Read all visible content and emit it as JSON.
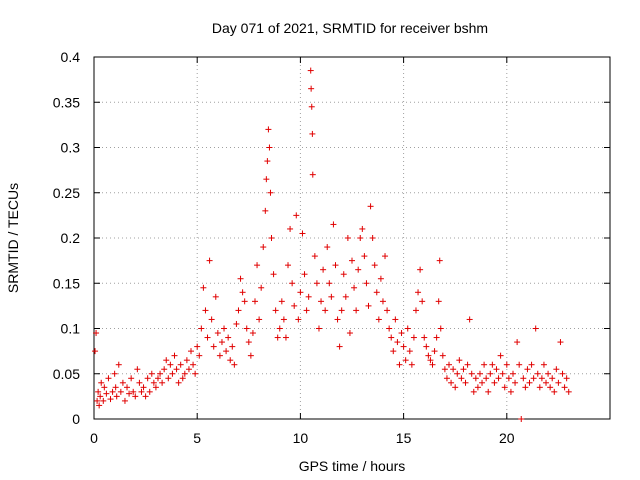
{
  "chart_data": {
    "type": "scatter",
    "title": "Day 071 of 2021, SRMTID for receiver bshm",
    "xlabel": "GPS time / hours",
    "ylabel": "SRMTID / TECUs",
    "xlim": [
      0,
      25
    ],
    "ylim": [
      0,
      0.4
    ],
    "x_ticks": [
      0,
      5,
      10,
      15,
      20
    ],
    "y_ticks": [
      0,
      0.05,
      0.1,
      0.15,
      0.2,
      0.25,
      0.3,
      0.35,
      0.4
    ],
    "x_tick_labels": [
      "0",
      "5",
      "10",
      "15",
      "20"
    ],
    "y_tick_labels": [
      "0",
      "0.05",
      "0.1",
      "0.15",
      "0.2",
      "0.25",
      "0.3",
      "0.35",
      "0.4"
    ],
    "grid": true,
    "marker": "+",
    "color": "#e00000",
    "series": [
      {
        "name": "SRMTID",
        "points": [
          [
            0.05,
            0.075
          ],
          [
            0.1,
            0.095
          ],
          [
            0.15,
            0.02
          ],
          [
            0.2,
            0.03
          ],
          [
            0.25,
            0.015
          ],
          [
            0.3,
            0.025
          ],
          [
            0.35,
            0.04
          ],
          [
            0.45,
            0.02
          ],
          [
            0.5,
            0.035
          ],
          [
            0.6,
            0.028
          ],
          [
            0.7,
            0.045
          ],
          [
            0.8,
            0.022
          ],
          [
            0.9,
            0.03
          ],
          [
            1.0,
            0.05
          ],
          [
            1.05,
            0.035
          ],
          [
            1.1,
            0.025
          ],
          [
            1.2,
            0.06
          ],
          [
            1.3,
            0.03
          ],
          [
            1.4,
            0.04
          ],
          [
            1.5,
            0.02
          ],
          [
            1.6,
            0.035
          ],
          [
            1.7,
            0.028
          ],
          [
            1.8,
            0.045
          ],
          [
            1.9,
            0.03
          ],
          [
            2.0,
            0.025
          ],
          [
            2.1,
            0.055
          ],
          [
            2.2,
            0.04
          ],
          [
            2.3,
            0.03
          ],
          [
            2.4,
            0.035
          ],
          [
            2.5,
            0.025
          ],
          [
            2.6,
            0.045
          ],
          [
            2.7,
            0.03
          ],
          [
            2.8,
            0.05
          ],
          [
            2.9,
            0.04
          ],
          [
            3.0,
            0.035
          ],
          [
            3.1,
            0.045
          ],
          [
            3.2,
            0.05
          ],
          [
            3.3,
            0.04
          ],
          [
            3.4,
            0.055
          ],
          [
            3.5,
            0.065
          ],
          [
            3.6,
            0.045
          ],
          [
            3.7,
            0.06
          ],
          [
            3.8,
            0.05
          ],
          [
            3.9,
            0.07
          ],
          [
            4.0,
            0.055
          ],
          [
            4.1,
            0.04
          ],
          [
            4.2,
            0.06
          ],
          [
            4.3,
            0.045
          ],
          [
            4.4,
            0.05
          ],
          [
            4.5,
            0.065
          ],
          [
            4.6,
            0.055
          ],
          [
            4.7,
            0.075
          ],
          [
            4.8,
            0.06
          ],
          [
            4.9,
            0.05
          ],
          [
            5.0,
            0.08
          ],
          [
            5.1,
            0.07
          ],
          [
            5.2,
            0.1
          ],
          [
            5.3,
            0.145
          ],
          [
            5.4,
            0.12
          ],
          [
            5.5,
            0.09
          ],
          [
            5.6,
            0.175
          ],
          [
            5.7,
            0.11
          ],
          [
            5.8,
            0.08
          ],
          [
            5.9,
            0.135
          ],
          [
            6.0,
            0.095
          ],
          [
            6.1,
            0.07
          ],
          [
            6.2,
            0.085
          ],
          [
            6.3,
            0.1
          ],
          [
            6.4,
            0.075
          ],
          [
            6.5,
            0.09
          ],
          [
            6.6,
            0.065
          ],
          [
            6.7,
            0.08
          ],
          [
            6.8,
            0.06
          ],
          [
            6.9,
            0.105
          ],
          [
            7.0,
            0.12
          ],
          [
            7.1,
            0.155
          ],
          [
            7.2,
            0.14
          ],
          [
            7.3,
            0.13
          ],
          [
            7.4,
            0.1
          ],
          [
            7.5,
            0.085
          ],
          [
            7.6,
            0.07
          ],
          [
            7.7,
            0.095
          ],
          [
            7.8,
            0.13
          ],
          [
            7.9,
            0.17
          ],
          [
            8.0,
            0.11
          ],
          [
            8.1,
            0.145
          ],
          [
            8.2,
            0.19
          ],
          [
            8.3,
            0.23
          ],
          [
            8.35,
            0.265
          ],
          [
            8.4,
            0.285
          ],
          [
            8.45,
            0.32
          ],
          [
            8.5,
            0.3
          ],
          [
            8.55,
            0.25
          ],
          [
            8.6,
            0.2
          ],
          [
            8.7,
            0.16
          ],
          [
            8.8,
            0.12
          ],
          [
            8.9,
            0.09
          ],
          [
            9.0,
            0.1
          ],
          [
            9.1,
            0.13
          ],
          [
            9.2,
            0.11
          ],
          [
            9.3,
            0.09
          ],
          [
            9.4,
            0.17
          ],
          [
            9.5,
            0.21
          ],
          [
            9.6,
            0.15
          ],
          [
            9.7,
            0.125
          ],
          [
            9.8,
            0.225
          ],
          [
            9.9,
            0.11
          ],
          [
            10.0,
            0.14
          ],
          [
            10.1,
            0.205
          ],
          [
            10.2,
            0.16
          ],
          [
            10.3,
            0.12
          ],
          [
            10.4,
            0.135
          ],
          [
            10.5,
            0.385
          ],
          [
            10.52,
            0.365
          ],
          [
            10.55,
            0.345
          ],
          [
            10.58,
            0.315
          ],
          [
            10.6,
            0.27
          ],
          [
            10.7,
            0.18
          ],
          [
            10.8,
            0.15
          ],
          [
            10.9,
            0.1
          ],
          [
            11.0,
            0.13
          ],
          [
            11.1,
            0.165
          ],
          [
            11.2,
            0.12
          ],
          [
            11.3,
            0.19
          ],
          [
            11.4,
            0.15
          ],
          [
            11.5,
            0.135
          ],
          [
            11.6,
            0.215
          ],
          [
            11.7,
            0.17
          ],
          [
            11.8,
            0.11
          ],
          [
            11.9,
            0.08
          ],
          [
            12.0,
            0.12
          ],
          [
            12.1,
            0.16
          ],
          [
            12.2,
            0.135
          ],
          [
            12.3,
            0.2
          ],
          [
            12.4,
            0.095
          ],
          [
            12.5,
            0.175
          ],
          [
            12.6,
            0.145
          ],
          [
            12.7,
            0.12
          ],
          [
            12.8,
            0.165
          ],
          [
            12.9,
            0.2
          ],
          [
            13.0,
            0.21
          ],
          [
            13.1,
            0.18
          ],
          [
            13.2,
            0.15
          ],
          [
            13.3,
            0.125
          ],
          [
            13.4,
            0.235
          ],
          [
            13.5,
            0.2
          ],
          [
            13.6,
            0.17
          ],
          [
            13.7,
            0.14
          ],
          [
            13.8,
            0.11
          ],
          [
            13.9,
            0.155
          ],
          [
            14.0,
            0.13
          ],
          [
            14.1,
            0.18
          ],
          [
            14.2,
            0.12
          ],
          [
            14.3,
            0.1
          ],
          [
            14.4,
            0.09
          ],
          [
            14.5,
            0.075
          ],
          [
            14.6,
            0.11
          ],
          [
            14.7,
            0.085
          ],
          [
            14.8,
            0.06
          ],
          [
            14.9,
            0.095
          ],
          [
            15.0,
            0.08
          ],
          [
            15.1,
            0.065
          ],
          [
            15.2,
            0.1
          ],
          [
            15.3,
            0.075
          ],
          [
            15.4,
            0.06
          ],
          [
            15.5,
            0.09
          ],
          [
            15.6,
            0.12
          ],
          [
            15.7,
            0.14
          ],
          [
            15.8,
            0.165
          ],
          [
            15.9,
            0.13
          ],
          [
            16.0,
            0.09
          ],
          [
            16.1,
            0.08
          ],
          [
            16.2,
            0.07
          ],
          [
            16.3,
            0.065
          ],
          [
            16.4,
            0.06
          ],
          [
            16.5,
            0.075
          ],
          [
            16.6,
            0.09
          ],
          [
            16.7,
            0.13
          ],
          [
            16.75,
            0.175
          ],
          [
            16.8,
            0.1
          ],
          [
            16.9,
            0.07
          ],
          [
            17.0,
            0.055
          ],
          [
            17.1,
            0.045
          ],
          [
            17.2,
            0.06
          ],
          [
            17.3,
            0.04
          ],
          [
            17.4,
            0.055
          ],
          [
            17.5,
            0.035
          ],
          [
            17.6,
            0.05
          ],
          [
            17.7,
            0.065
          ],
          [
            17.8,
            0.045
          ],
          [
            17.9,
            0.055
          ],
          [
            18.0,
            0.04
          ],
          [
            18.1,
            0.06
          ],
          [
            18.2,
            0.11
          ],
          [
            18.3,
            0.05
          ],
          [
            18.4,
            0.03
          ],
          [
            18.5,
            0.045
          ],
          [
            18.6,
            0.035
          ],
          [
            18.7,
            0.05
          ],
          [
            18.8,
            0.04
          ],
          [
            18.9,
            0.06
          ],
          [
            19.0,
            0.045
          ],
          [
            19.1,
            0.03
          ],
          [
            19.2,
            0.05
          ],
          [
            19.3,
            0.06
          ],
          [
            19.4,
            0.04
          ],
          [
            19.5,
            0.055
          ],
          [
            19.6,
            0.045
          ],
          [
            19.7,
            0.07
          ],
          [
            19.8,
            0.05
          ],
          [
            19.9,
            0.035
          ],
          [
            20.0,
            0.06
          ],
          [
            20.1,
            0.045
          ],
          [
            20.2,
            0.03
          ],
          [
            20.3,
            0.05
          ],
          [
            20.4,
            0.04
          ],
          [
            20.5,
            0.085
          ],
          [
            20.6,
            0.06
          ],
          [
            20.7,
            0.0
          ],
          [
            20.8,
            0.045
          ],
          [
            20.9,
            0.035
          ],
          [
            21.0,
            0.055
          ],
          [
            21.1,
            0.04
          ],
          [
            21.2,
            0.06
          ],
          [
            21.3,
            0.045
          ],
          [
            21.4,
            0.1
          ],
          [
            21.5,
            0.05
          ],
          [
            21.6,
            0.035
          ],
          [
            21.7,
            0.045
          ],
          [
            21.8,
            0.06
          ],
          [
            21.9,
            0.04
          ],
          [
            22.0,
            0.05
          ],
          [
            22.1,
            0.035
          ],
          [
            22.2,
            0.045
          ],
          [
            22.3,
            0.03
          ],
          [
            22.4,
            0.055
          ],
          [
            22.5,
            0.04
          ],
          [
            22.6,
            0.085
          ],
          [
            22.7,
            0.05
          ],
          [
            22.8,
            0.035
          ],
          [
            22.9,
            0.045
          ],
          [
            23.0,
            0.03
          ]
        ]
      }
    ]
  }
}
